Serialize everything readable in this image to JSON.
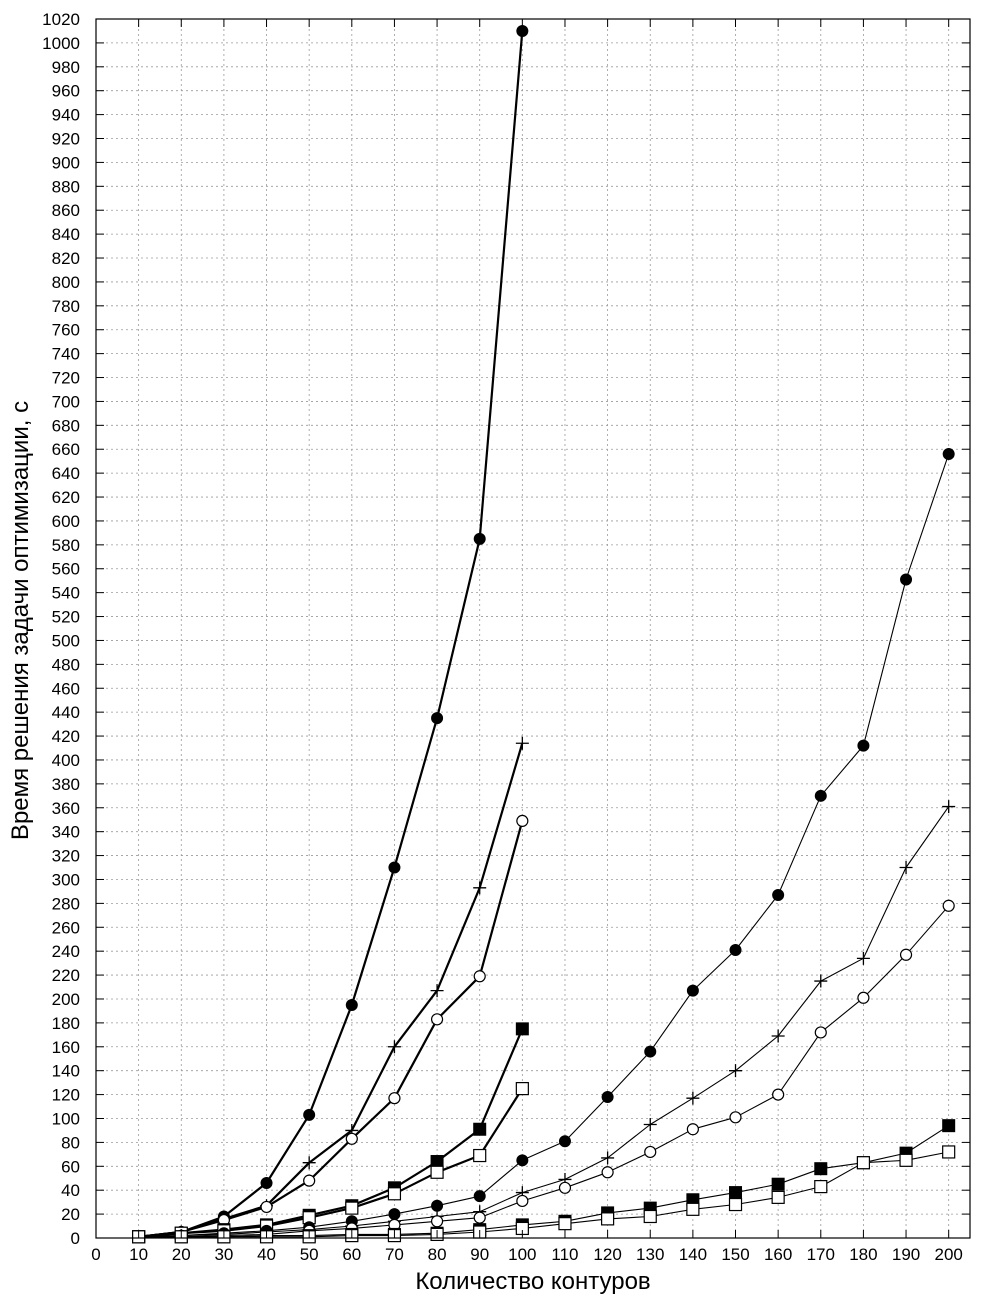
{
  "chart_data": {
    "type": "line",
    "title": "",
    "xlabel": "Количество контуров",
    "ylabel": "Время решения задачи оптимизации, с",
    "xlim": [
      0,
      205
    ],
    "ylim": [
      0,
      1020
    ],
    "xticks": [
      0,
      10,
      20,
      30,
      40,
      50,
      60,
      70,
      80,
      90,
      100,
      110,
      120,
      130,
      140,
      150,
      160,
      170,
      180,
      190,
      200
    ],
    "yticks": [
      0,
      20,
      40,
      60,
      80,
      100,
      120,
      140,
      160,
      180,
      200,
      220,
      240,
      260,
      280,
      300,
      320,
      340,
      360,
      380,
      400,
      420,
      440,
      460,
      480,
      500,
      520,
      540,
      560,
      580,
      600,
      620,
      640,
      660,
      680,
      700,
      720,
      740,
      760,
      780,
      800,
      820,
      840,
      860,
      880,
      900,
      920,
      940,
      960,
      980,
      1000,
      1020
    ],
    "grid": true,
    "legend": "none",
    "series": [
      {
        "marker": "filled-circle",
        "line": "thick",
        "x": [
          10,
          20,
          30,
          40,
          50,
          60,
          70,
          80,
          90,
          100
        ],
        "values": [
          1,
          5,
          18,
          46,
          103,
          195,
          310,
          435,
          585,
          1010
        ]
      },
      {
        "marker": "plus",
        "line": "thick",
        "x": [
          10,
          20,
          30,
          40,
          50,
          60,
          70,
          80,
          90,
          100
        ],
        "values": [
          1,
          5,
          16,
          27,
          63,
          90,
          160,
          207,
          293,
          414
        ]
      },
      {
        "marker": "open-circle",
        "line": "thick",
        "x": [
          10,
          20,
          30,
          40,
          50,
          60,
          70,
          80,
          90,
          100
        ],
        "values": [
          1,
          5,
          15,
          26,
          48,
          83,
          117,
          183,
          219,
          349
        ]
      },
      {
        "marker": "filled-square",
        "line": "thick",
        "x": [
          10,
          20,
          30,
          40,
          50,
          60,
          70,
          80,
          90,
          100
        ],
        "values": [
          1,
          4,
          7,
          11,
          19,
          27,
          42,
          64,
          91,
          175
        ]
      },
      {
        "marker": "open-square",
        "line": "thick",
        "x": [
          10,
          20,
          30,
          40,
          50,
          60,
          70,
          80,
          90,
          100
        ],
        "values": [
          1,
          4,
          6,
          10,
          17,
          25,
          37,
          55,
          69,
          125
        ]
      },
      {
        "marker": "filled-circle",
        "line": "thin",
        "x": [
          10,
          20,
          30,
          40,
          50,
          60,
          70,
          80,
          90,
          100,
          110,
          120,
          130,
          140,
          150,
          160,
          170,
          180,
          190,
          200
        ],
        "values": [
          1,
          2,
          4,
          6,
          9,
          14,
          20,
          27,
          35,
          65,
          81,
          118,
          156,
          207,
          241,
          287,
          370,
          412,
          551,
          656
        ]
      },
      {
        "marker": "plus",
        "line": "thin",
        "x": [
          10,
          20,
          30,
          40,
          50,
          60,
          70,
          80,
          90,
          100,
          110,
          120,
          130,
          140,
          150,
          160,
          170,
          180,
          190,
          200
        ],
        "values": [
          1,
          2,
          3,
          5,
          7,
          10,
          14,
          18,
          22,
          38,
          49,
          67,
          95,
          117,
          140,
          169,
          215,
          234,
          310,
          361
        ]
      },
      {
        "marker": "open-circle",
        "line": "thin",
        "x": [
          10,
          20,
          30,
          40,
          50,
          60,
          70,
          80,
          90,
          100,
          110,
          120,
          130,
          140,
          150,
          160,
          170,
          180,
          190,
          200
        ],
        "values": [
          1,
          1,
          2,
          3,
          6,
          8,
          11,
          14,
          17,
          31,
          42,
          55,
          72,
          91,
          101,
          120,
          172,
          201,
          237,
          278
        ]
      },
      {
        "marker": "filled-square",
        "line": "thin",
        "x": [
          10,
          20,
          30,
          40,
          50,
          60,
          70,
          80,
          90,
          100,
          110,
          120,
          130,
          140,
          150,
          160,
          170,
          180,
          190,
          200
        ],
        "values": [
          1,
          1,
          1,
          2,
          2,
          3,
          3,
          4,
          7,
          11,
          14,
          21,
          25,
          32,
          38,
          45,
          58,
          63,
          71,
          94
        ]
      },
      {
        "marker": "open-square",
        "line": "thin",
        "x": [
          10,
          20,
          30,
          40,
          50,
          60,
          70,
          80,
          90,
          100,
          110,
          120,
          130,
          140,
          150,
          160,
          170,
          180,
          190,
          200
        ],
        "values": [
          1,
          1,
          1,
          1,
          1,
          2,
          2,
          3,
          5,
          8,
          12,
          16,
          18,
          24,
          28,
          34,
          43,
          63,
          65,
          72
        ]
      }
    ]
  }
}
